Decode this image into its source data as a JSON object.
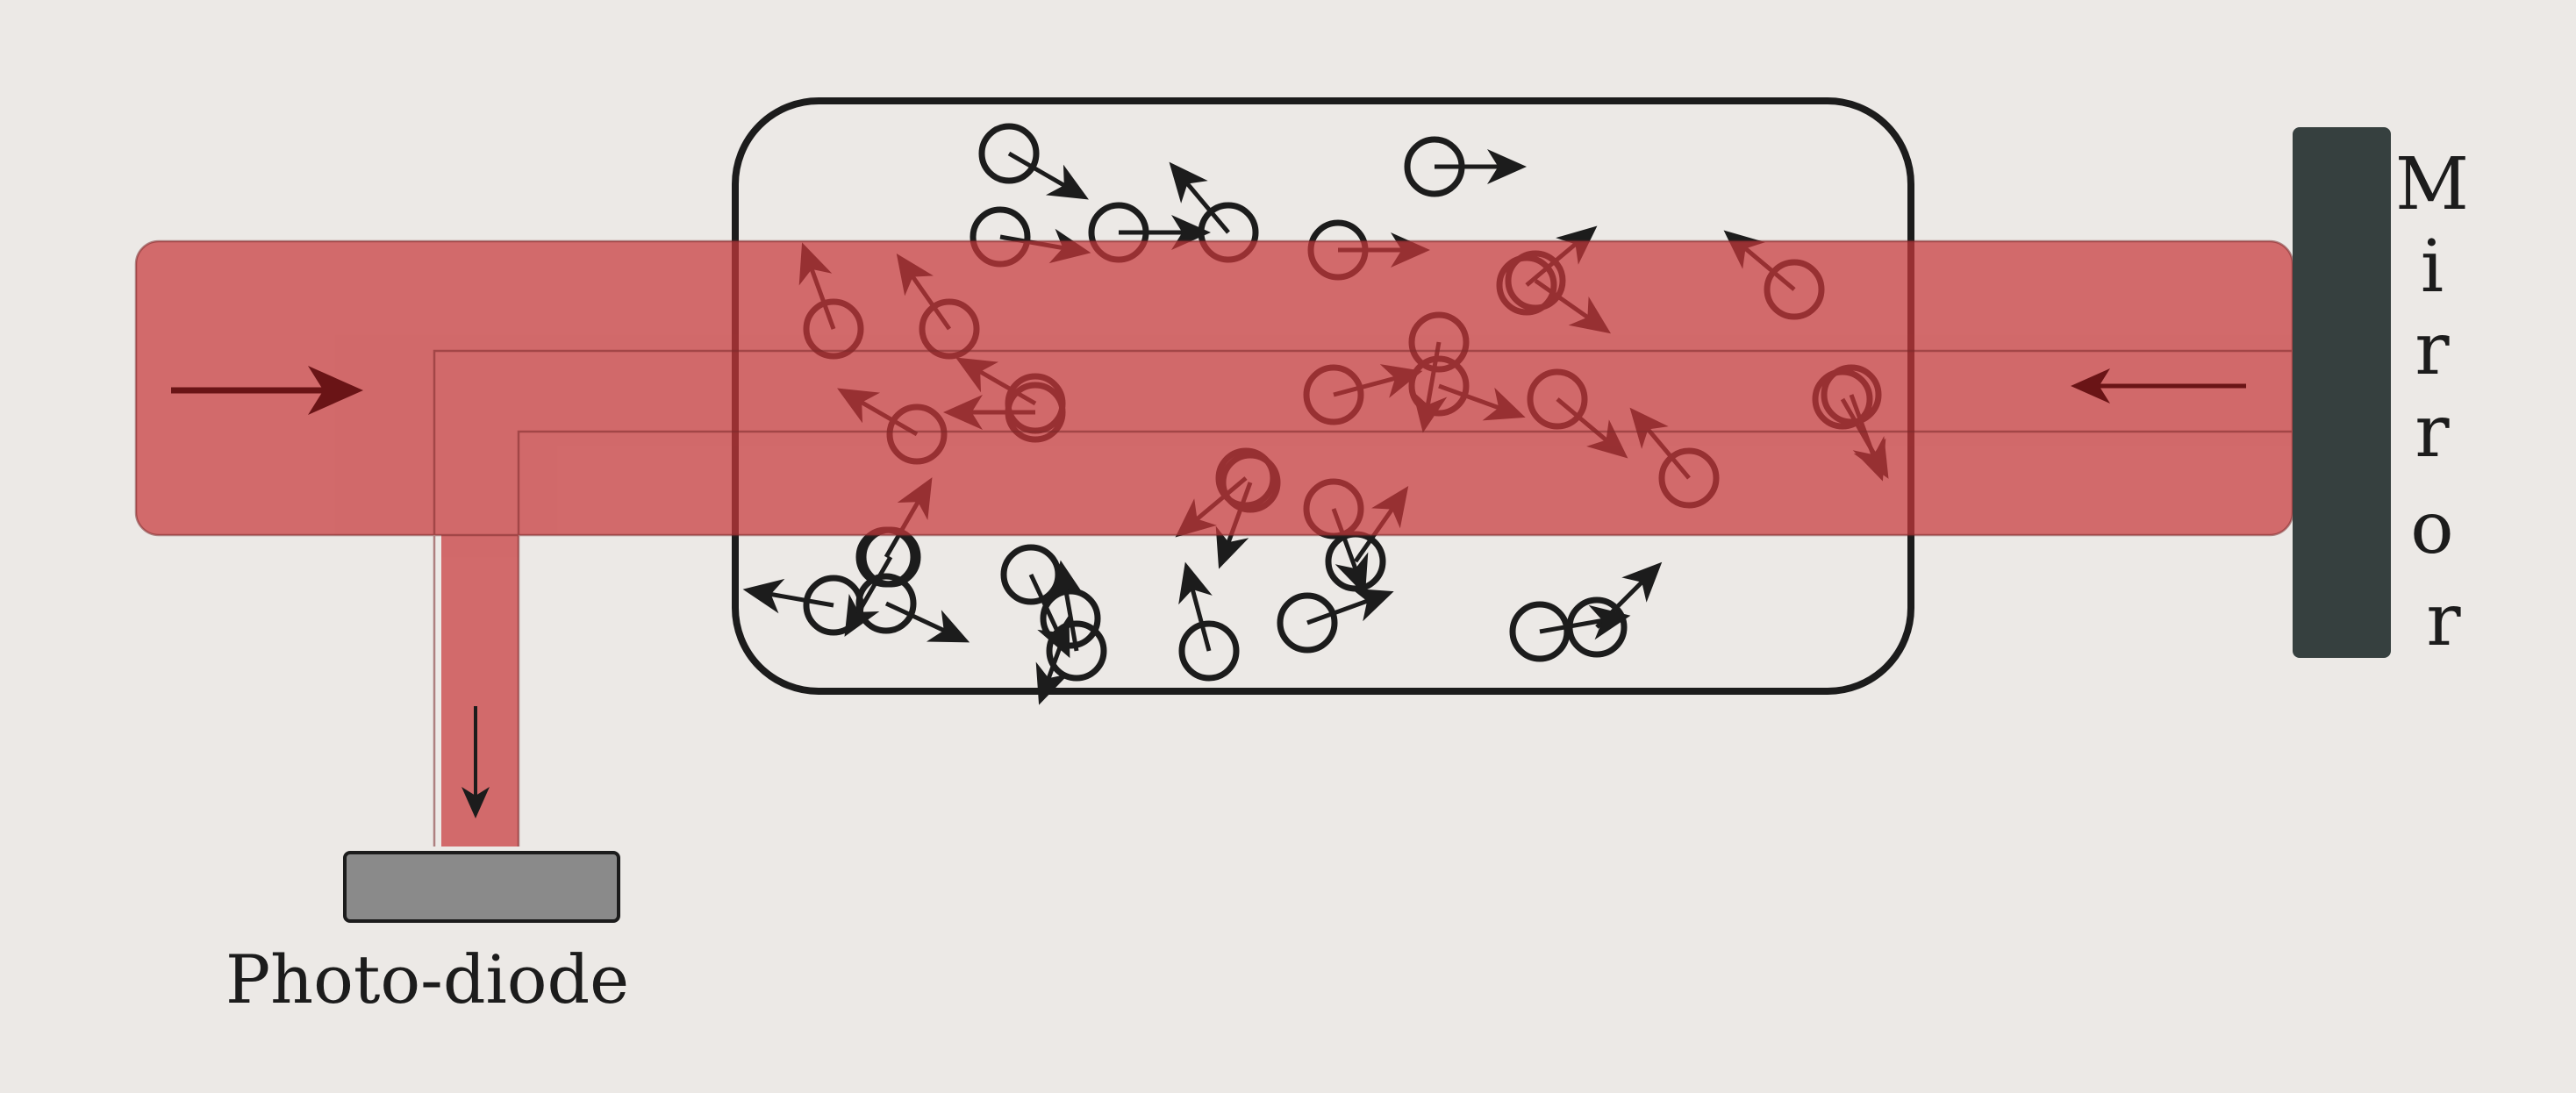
{
  "labels": {
    "mirror": "Mirror",
    "photodiode": "Photo-diode"
  },
  "colors": {
    "paper": "#ece9e6",
    "beam": "#c8393b",
    "beam_arrow": "#6a1416",
    "mirror": "#36403f",
    "photodiode": "#8a8a8a",
    "ink": "#1c1c1c"
  },
  "mirror_letters": [
    "M",
    "i",
    "r",
    "r",
    "o",
    "r"
  ],
  "atom_velocity_directions_deg": [
    -30,
    0,
    -10,
    0,
    0,
    -35,
    110,
    125,
    130,
    140,
    150,
    -20,
    150,
    130,
    15,
    -40,
    -60,
    -110,
    -100,
    -70,
    60,
    220,
    180,
    240,
    170,
    20,
    45,
    250,
    -25,
    -65,
    10,
    55,
    40,
    -70,
    105,
    100
  ]
}
